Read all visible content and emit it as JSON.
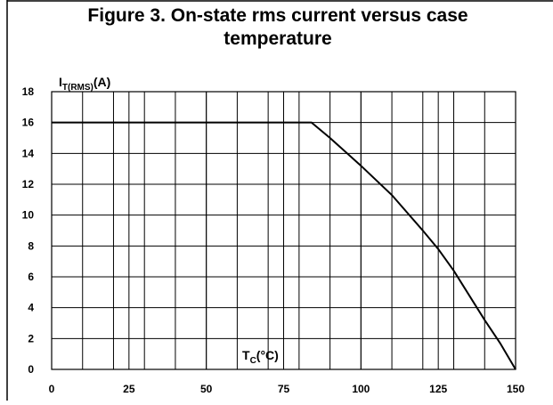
{
  "chart_data": {
    "type": "line",
    "title": [
      "Figure 3. On-state rms current versus case",
      "temperature"
    ],
    "ylabel": {
      "main": "I",
      "sub": "T(RMS)",
      "unit": "(A)"
    },
    "xlabel": {
      "main": "T",
      "sub": "C",
      "unit": "(°C)"
    },
    "x": [
      0,
      84,
      90,
      100,
      110,
      120,
      125,
      130,
      140,
      145,
      150
    ],
    "series": [
      {
        "name": "IT(RMS)",
        "color": "#000000",
        "values": [
          16,
          16,
          15,
          13.2,
          11.3,
          9,
          7.8,
          6.4,
          3.2,
          1.7,
          0
        ]
      }
    ],
    "xlim": [
      0,
      150
    ],
    "ylim": [
      0,
      18
    ],
    "xticks": [
      0,
      25,
      50,
      75,
      100,
      125,
      150
    ],
    "yticks": [
      0,
      2,
      4,
      6,
      8,
      10,
      12,
      14,
      16,
      18
    ],
    "xgrid": [
      10,
      20,
      30,
      40,
      50,
      60,
      70,
      80,
      90,
      100,
      110,
      120,
      130,
      140
    ],
    "grid": true
  }
}
